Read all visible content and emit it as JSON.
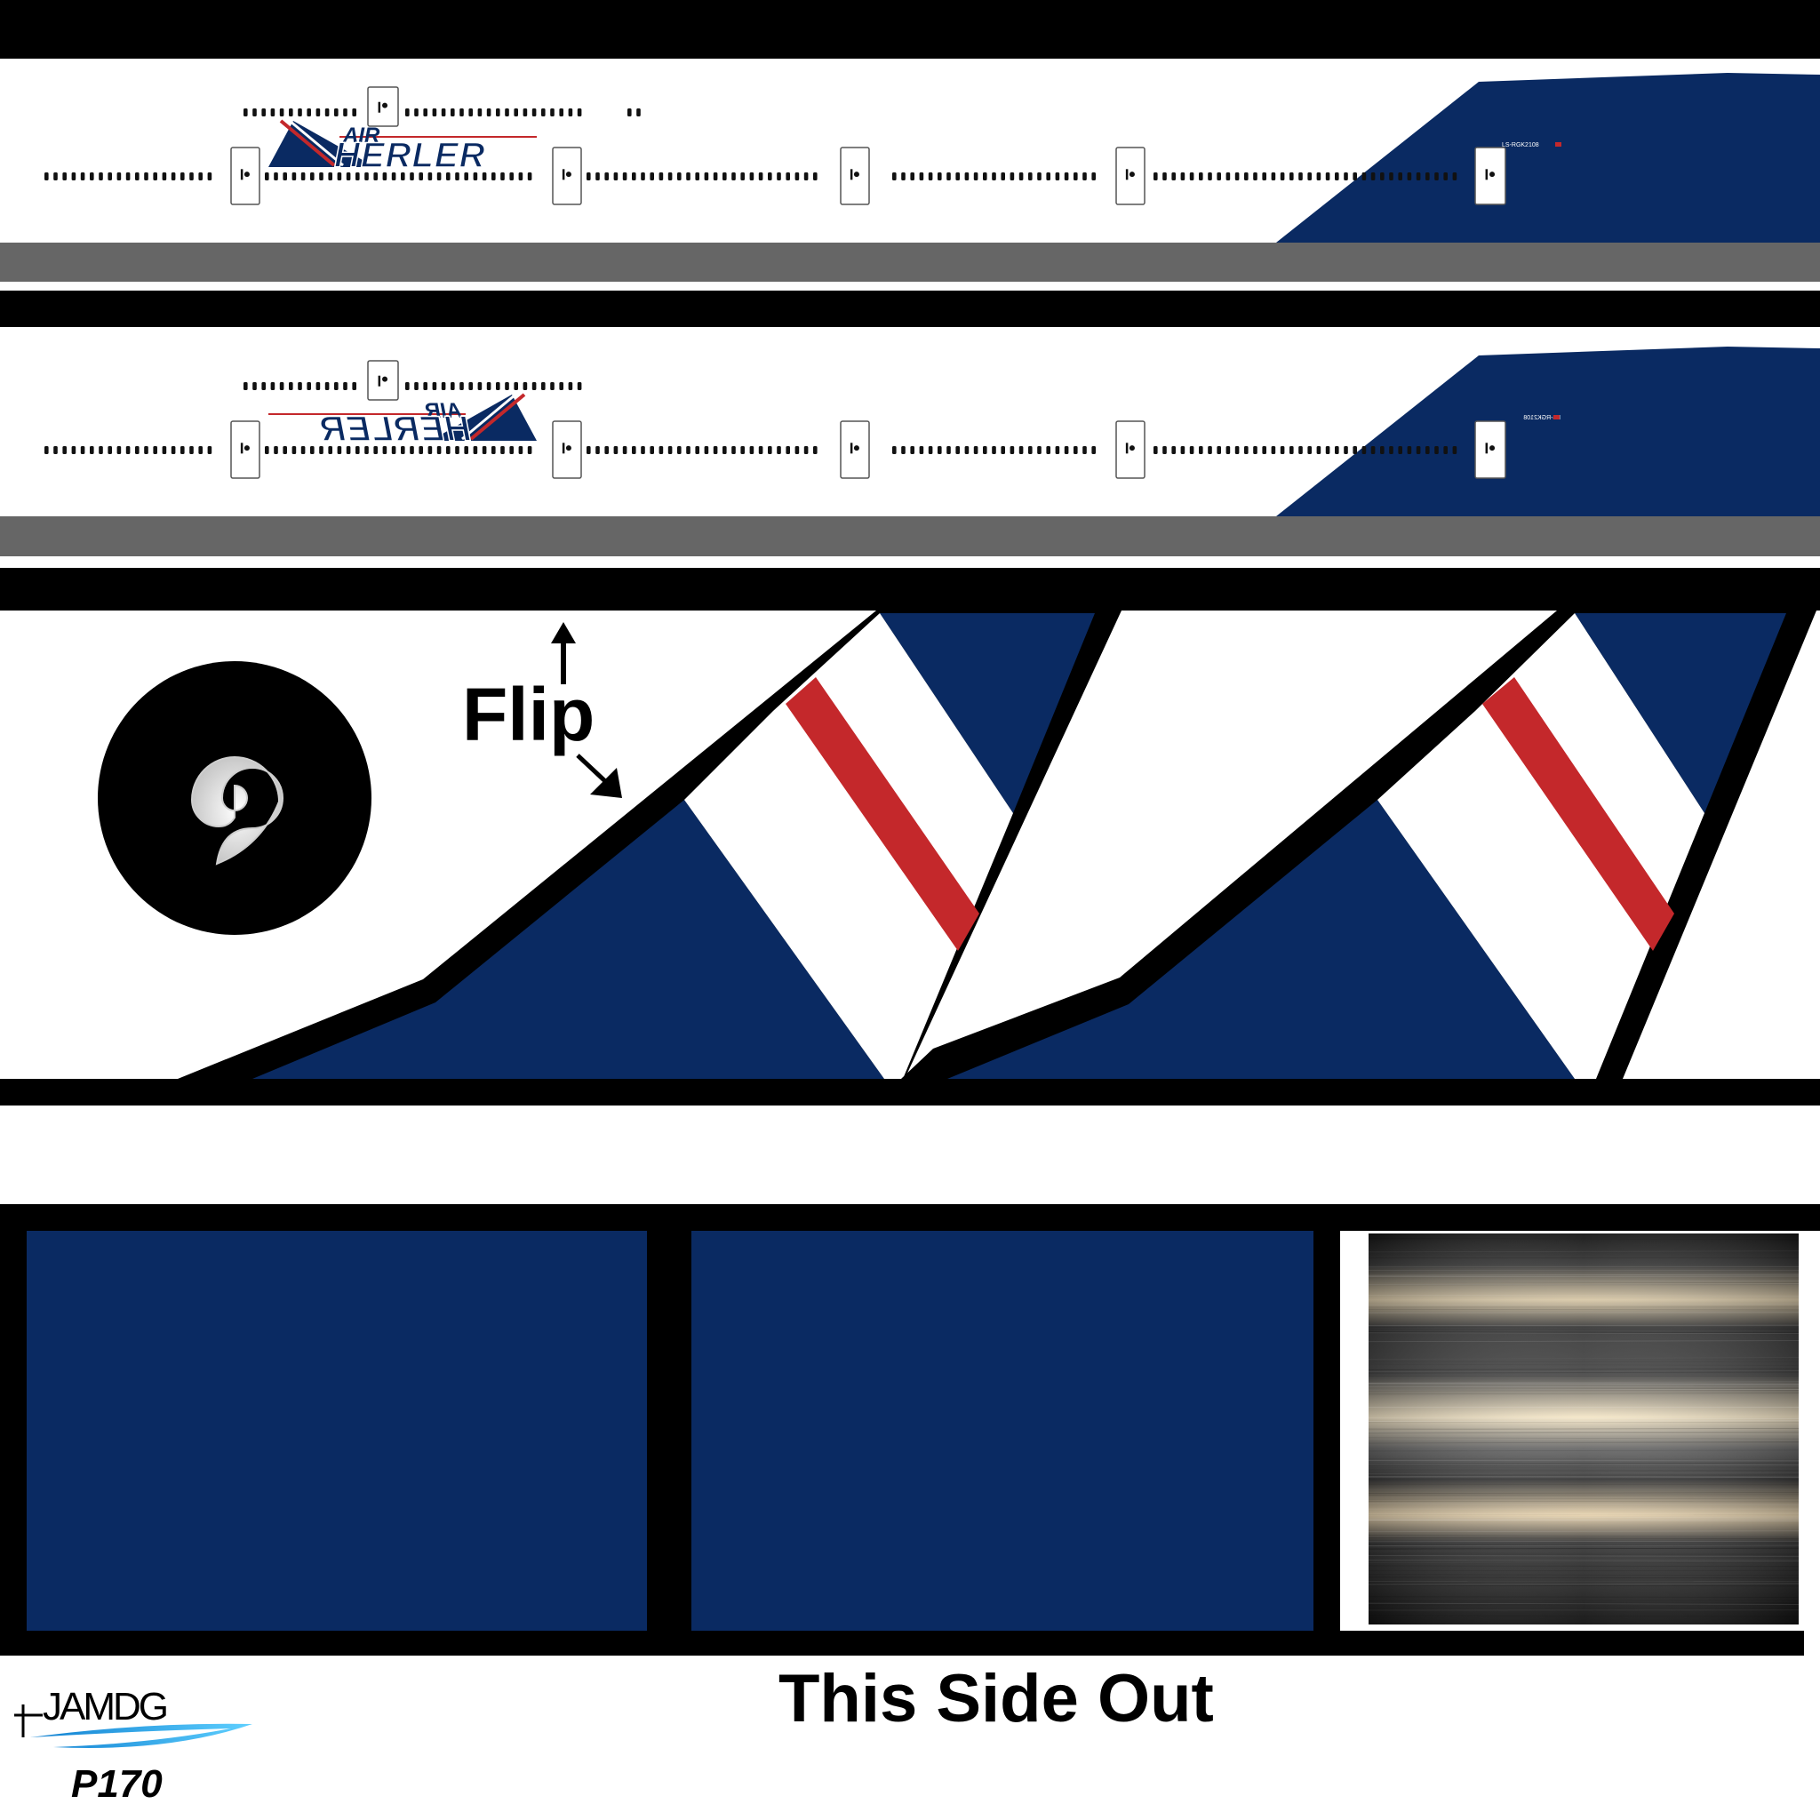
{
  "fuselage_top": {
    "airline_brand": "AIR",
    "airline_name": "HERLER",
    "registration": "LS-RGK2108"
  },
  "fuselage_bottom": {
    "airline_brand": "AIR",
    "airline_name": "HERLER",
    "registration": "LS-RGK2108"
  },
  "tail_section": {
    "flip_label": "Flip"
  },
  "footer": {
    "side_label": "This Side Out",
    "logo_text": "JAMDG",
    "model_label": "P170"
  },
  "colors": {
    "navy": "#0a2a62",
    "red": "#c4282b",
    "gray_stripe": "#666666",
    "black": "#000000",
    "white": "#ffffff"
  }
}
